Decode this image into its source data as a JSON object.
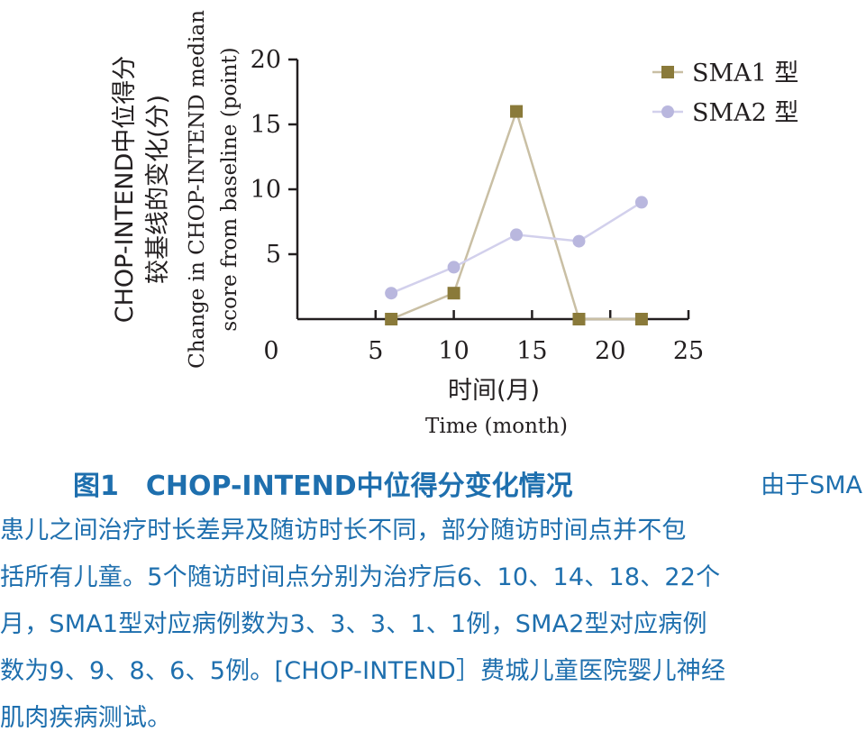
{
  "chart_data": {
    "type": "line",
    "xlabel_cn": "时间(月)",
    "xlabel_en": "Time (month)",
    "ylabel_cn_1": "CHOP-INTEND中位得分",
    "ylabel_cn_2": "较基线的变化(分)",
    "ylabel_en_1": "Change in CHOP-INTEND median",
    "ylabel_en_2": "score from baseline (point)",
    "xlim": [
      0,
      25
    ],
    "ylim": [
      0,
      20
    ],
    "x_ticks": [
      5,
      10,
      15,
      20,
      25
    ],
    "y_ticks": [
      5,
      10,
      15,
      20
    ],
    "origin_label": "0",
    "legend_position": "top-right",
    "series": [
      {
        "name": "SMA1 型",
        "color": "#8a7a3a",
        "line_color": "#c9bfa4",
        "marker": "square",
        "x": [
          6,
          10,
          14,
          18,
          22
        ],
        "y": [
          0,
          2,
          16,
          0,
          0
        ]
      },
      {
        "name": "SMA2 型",
        "color": "#b9b7de",
        "line_color": "#d2d0ec",
        "marker": "circle",
        "x": [
          6,
          10,
          14,
          18,
          22
        ],
        "y": [
          2,
          4,
          6.5,
          6,
          9
        ]
      }
    ]
  },
  "caption": {
    "title": "图1　CHOP-INTEND中位得分变化情况",
    "lead": "由于SMA",
    "lines": [
      "患儿之间治疗时长差异及随访时长不同，部分随访时间点并不包",
      "括所有儿童。5个随访时间点分别为治疗后6、10、14、18、22个",
      "月，SMA1型对应病例数为3、3、3、1、1例，SMA2型对应病例",
      "数为9、9、8、6、5例。[CHOP-INTEND］费城儿童医院婴儿神经",
      "肌肉疾病测试。"
    ]
  }
}
